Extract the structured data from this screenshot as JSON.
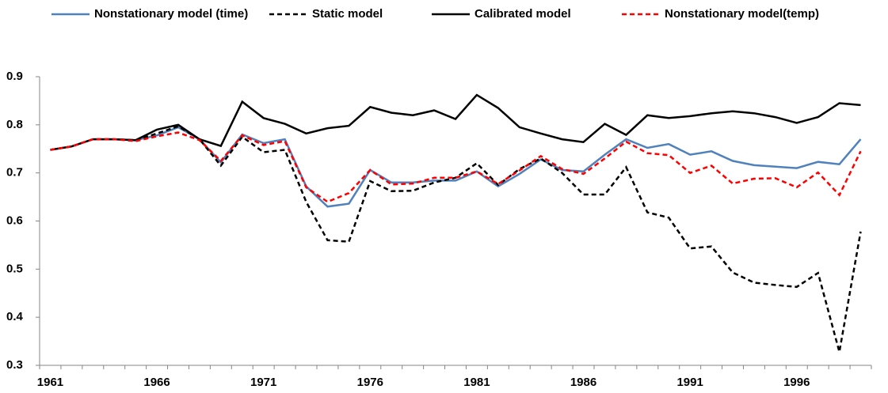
{
  "chart_data": {
    "type": "line",
    "categories": [
      1961,
      null,
      null,
      null,
      null,
      1966,
      null,
      null,
      null,
      null,
      1971,
      null,
      null,
      null,
      null,
      1976,
      null,
      null,
      null,
      null,
      1981,
      null,
      null,
      null,
      null,
      1986,
      null,
      null,
      null,
      null,
      1991,
      null,
      null,
      null,
      null,
      1996,
      null,
      null,
      null
    ],
    "series": [
      {
        "name": "Nonstationary model (time)",
        "color": "#4f81bd",
        "style": "solid",
        "values": [
          0.748,
          0.755,
          0.77,
          0.77,
          0.768,
          0.778,
          0.795,
          0.77,
          0.722,
          0.78,
          0.762,
          0.77,
          0.672,
          0.63,
          0.636,
          0.706,
          0.68,
          0.68,
          0.684,
          0.684,
          0.703,
          0.672,
          0.698,
          0.728,
          0.706,
          0.703,
          0.738,
          0.77,
          0.752,
          0.76,
          0.738,
          0.745,
          0.725,
          0.716,
          0.713,
          0.71,
          0.723,
          0.718,
          0.77
        ]
      },
      {
        "name": "Static model",
        "color": "#000000",
        "style": "dashed",
        "values": [
          0.748,
          0.755,
          0.77,
          0.77,
          0.768,
          0.782,
          0.797,
          0.77,
          0.715,
          0.775,
          0.743,
          0.748,
          0.64,
          0.56,
          0.557,
          0.683,
          0.662,
          0.663,
          0.68,
          0.69,
          0.72,
          0.675,
          0.708,
          0.73,
          0.7,
          0.655,
          0.655,
          0.712,
          0.618,
          0.607,
          0.543,
          0.547,
          0.493,
          0.472,
          0.467,
          0.463,
          0.492,
          0.328,
          0.578
        ]
      },
      {
        "name": "Calibrated model",
        "color": "#000000",
        "style": "solid",
        "values": [
          0.748,
          0.755,
          0.77,
          0.77,
          0.768,
          0.79,
          0.8,
          0.77,
          0.756,
          0.848,
          0.814,
          0.802,
          0.782,
          0.793,
          0.798,
          0.837,
          0.825,
          0.82,
          0.83,
          0.812,
          0.862,
          0.835,
          0.795,
          0.782,
          0.77,
          0.764,
          0.802,
          0.779,
          0.82,
          0.814,
          0.818,
          0.824,
          0.828,
          0.824,
          0.816,
          0.804,
          0.816,
          0.845,
          0.841
        ]
      },
      {
        "name": "Nonstationary model(temp)",
        "color": "#ff0000",
        "style": "dashed",
        "values": [
          0.748,
          0.755,
          0.77,
          0.77,
          0.766,
          0.776,
          0.784,
          0.768,
          0.725,
          0.778,
          0.758,
          0.766,
          0.67,
          0.64,
          0.658,
          0.706,
          0.676,
          0.678,
          0.69,
          0.69,
          0.703,
          0.677,
          0.705,
          0.735,
          0.708,
          0.698,
          0.73,
          0.765,
          0.741,
          0.737,
          0.7,
          0.715,
          0.678,
          0.688,
          0.689,
          0.67,
          0.701,
          0.654,
          0.745
        ]
      }
    ],
    "ylim": [
      0.3,
      0.9
    ],
    "yticks": [
      0.3,
      0.4,
      0.5,
      0.6,
      0.7,
      0.8,
      0.9
    ],
    "grid": false
  }
}
